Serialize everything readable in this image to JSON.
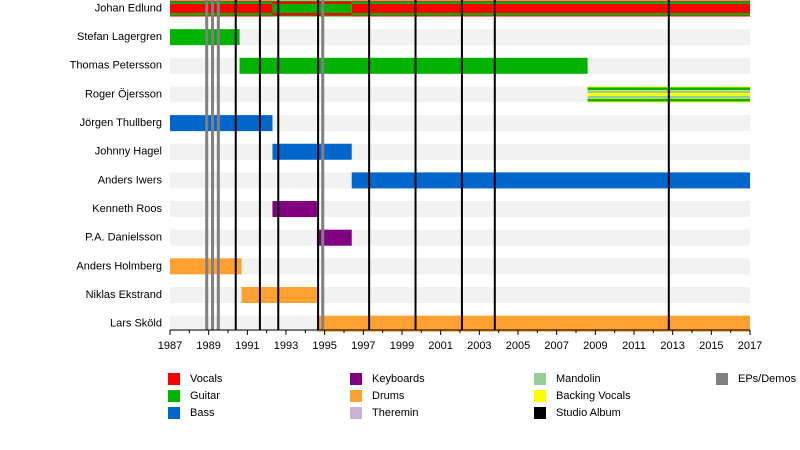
{
  "chart_data": {
    "type": "timeline",
    "xlim": [
      1987,
      2017
    ],
    "xticks": [
      1987,
      1989,
      1991,
      1993,
      1995,
      1997,
      1999,
      2001,
      2003,
      2005,
      2007,
      2009,
      2011,
      2013,
      2015,
      2017
    ],
    "legend": [
      {
        "name": "Vocals",
        "color": "#ff0000"
      },
      {
        "name": "Guitar",
        "color": "#00b300"
      },
      {
        "name": "Bass",
        "color": "#0066cc"
      },
      {
        "name": "Keyboards",
        "color": "#800080"
      },
      {
        "name": "Drums",
        "color": "#ffa033"
      },
      {
        "name": "Theremin",
        "color": "#c9b3d6"
      },
      {
        "name": "Mandolin",
        "color": "#99cc99"
      },
      {
        "name": "Backing Vocals",
        "color": "#ffff00"
      },
      {
        "name": "Studio Album",
        "color": "#000000"
      },
      {
        "name": "EPs/Demos",
        "color": "#808080"
      }
    ],
    "members": [
      {
        "name": "Johan Edlund",
        "periods": [
          {
            "start": 1987,
            "end": 1992.3,
            "roles": [
              "Vocals",
              "Guitar"
            ]
          },
          {
            "start": 1992.3,
            "end": 1996.4,
            "roles": [
              "Guitar",
              "Vocals"
            ]
          },
          {
            "start": 1996.4,
            "end": 2017,
            "roles": [
              "Vocals",
              "Guitar"
            ]
          }
        ]
      },
      {
        "name": "Stefan Lagergren",
        "periods": [
          {
            "start": 1987,
            "end": 1990.6,
            "roles": [
              "Guitar"
            ]
          }
        ]
      },
      {
        "name": "Thomas Petersson",
        "periods": [
          {
            "start": 1990.6,
            "end": 2008.6,
            "roles": [
              "Guitar"
            ]
          }
        ]
      },
      {
        "name": "Roger Öjersson",
        "periods": [
          {
            "start": 2008.6,
            "end": 2017,
            "roles": [
              "Backing Vocals",
              "Guitar",
              "Mandolin"
            ]
          }
        ]
      },
      {
        "name": "Jörgen Thullberg",
        "periods": [
          {
            "start": 1987,
            "end": 1992.3,
            "roles": [
              "Bass"
            ]
          }
        ]
      },
      {
        "name": "Johnny Hagel",
        "periods": [
          {
            "start": 1992.3,
            "end": 1996.4,
            "roles": [
              "Bass"
            ]
          }
        ]
      },
      {
        "name": "Anders Iwers",
        "periods": [
          {
            "start": 1996.4,
            "end": 2017,
            "roles": [
              "Bass"
            ]
          }
        ]
      },
      {
        "name": "Kenneth Roos",
        "periods": [
          {
            "start": 1992.3,
            "end": 1994.6,
            "roles": [
              "Keyboards"
            ]
          }
        ]
      },
      {
        "name": "P.A. Danielsson",
        "periods": [
          {
            "start": 1994.6,
            "end": 1996.4,
            "roles": [
              "Keyboards"
            ]
          }
        ]
      },
      {
        "name": "Anders Holmberg",
        "periods": [
          {
            "start": 1987,
            "end": 1990.7,
            "roles": [
              "Drums"
            ]
          }
        ]
      },
      {
        "name": "Niklas Ekstrand",
        "periods": [
          {
            "start": 1990.7,
            "end": 1994.6,
            "roles": [
              "Drums"
            ]
          }
        ]
      },
      {
        "name": "Lars Sköld",
        "periods": [
          {
            "start": 1994.6,
            "end": 2017,
            "roles": [
              "Drums"
            ]
          }
        ]
      }
    ],
    "albums": [
      1990.4,
      1991.65,
      1992.6,
      1994.66,
      1997.3,
      1999.7,
      2002.1,
      2003.8,
      2012.8
    ],
    "eps": [
      1988.9,
      1989.2,
      1989.5,
      1994.9
    ]
  }
}
